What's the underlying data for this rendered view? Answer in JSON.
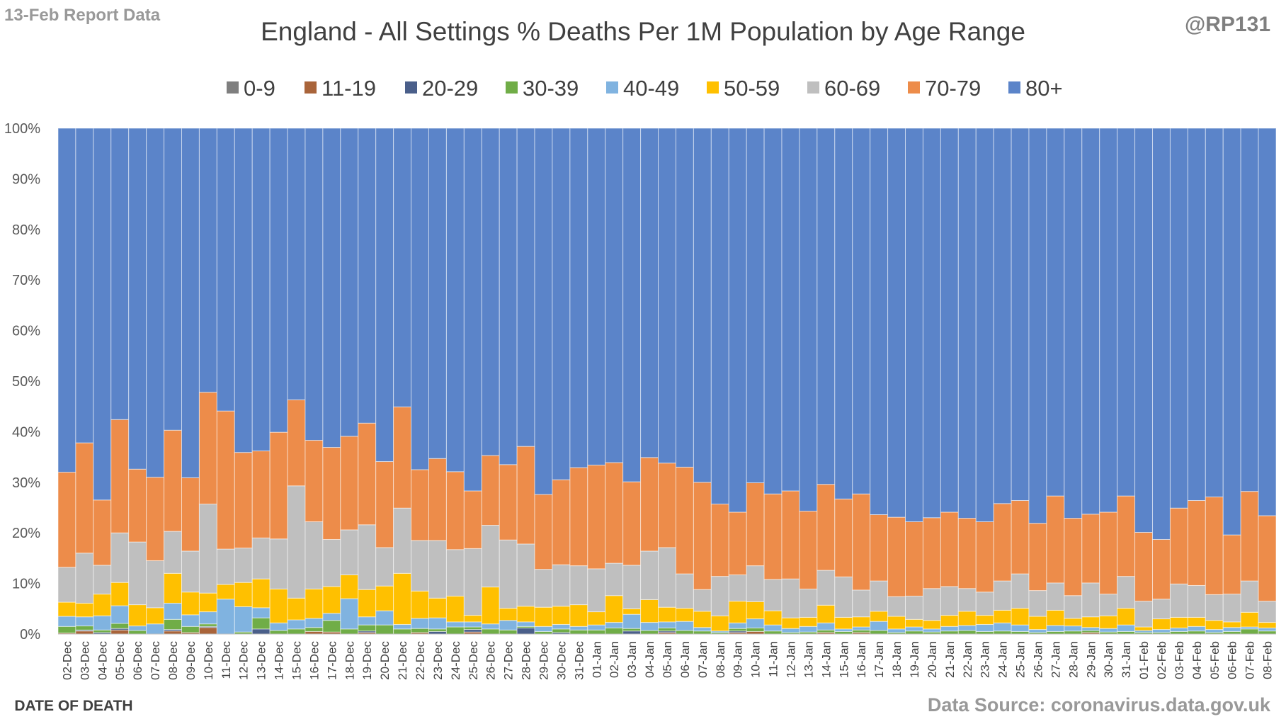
{
  "header": {
    "report_label": "13-Feb Report Data",
    "brand": "@RP131",
    "source": "Data Source: coronavirus.data.gov.uk"
  },
  "chart_data": {
    "type": "bar",
    "stacked": true,
    "normalized": true,
    "title": "England - All Settings % Deaths Per 1M Population by Age Range",
    "xlabel": "DATE OF DEATH",
    "ylabel": "",
    "ylim": [
      0,
      100
    ],
    "y_ticks": [
      "0%",
      "10%",
      "20%",
      "30%",
      "40%",
      "50%",
      "60%",
      "70%",
      "80%",
      "90%",
      "100%"
    ],
    "legend_position": "top",
    "grid": false,
    "categories": [
      "02-Dec",
      "03-Dec",
      "04-Dec",
      "05-Dec",
      "06-Dec",
      "07-Dec",
      "08-Dec",
      "09-Dec",
      "10-Dec",
      "11-Dec",
      "12-Dec",
      "13-Dec",
      "14-Dec",
      "15-Dec",
      "16-Dec",
      "17-Dec",
      "18-Dec",
      "19-Dec",
      "20-Dec",
      "21-Dec",
      "22-Dec",
      "23-Dec",
      "24-Dec",
      "25-Dec",
      "26-Dec",
      "27-Dec",
      "28-Dec",
      "29-Dec",
      "30-Dec",
      "31-Dec",
      "01-Jan",
      "02-Jan",
      "03-Jan",
      "04-Jan",
      "05-Jan",
      "06-Jan",
      "07-Jan",
      "08-Jan",
      "09-Jan",
      "10-Jan",
      "11-Jan",
      "12-Jan",
      "13-Jan",
      "14-Jan",
      "15-Jan",
      "16-Jan",
      "17-Jan",
      "18-Jan",
      "19-Jan",
      "20-Jan",
      "21-Jan",
      "22-Jan",
      "23-Jan",
      "24-Jan",
      "25-Jan",
      "26-Jan",
      "27-Jan",
      "28-Jan",
      "29-Jan",
      "30-Jan",
      "31-Jan",
      "01-Feb",
      "02-Feb",
      "03-Feb",
      "04-Feb",
      "05-Feb",
      "06-Feb",
      "07-Feb",
      "08-Feb"
    ],
    "series": [
      {
        "name": "0-9",
        "color": "#7f7f7f",
        "values": [
          0,
          0,
          0,
          0,
          0,
          0,
          0,
          0,
          0,
          0,
          0,
          0,
          0,
          0,
          0,
          0,
          0,
          0,
          0,
          0,
          0,
          0,
          0,
          0,
          0,
          0,
          0,
          0,
          0,
          0,
          0,
          0,
          0,
          0,
          0,
          0,
          0,
          0,
          0,
          0,
          0,
          0,
          0,
          0,
          0,
          0,
          0,
          0,
          0,
          0,
          0,
          0,
          0,
          0,
          0,
          0,
          0,
          0,
          0,
          0,
          0,
          0,
          0,
          0,
          0,
          0,
          0,
          0,
          0
        ]
      },
      {
        "name": "11-19",
        "color": "#a9643a",
        "values": [
          0.2,
          0.6,
          0,
          0.8,
          0,
          0,
          0.6,
          0.3,
          1.3,
          0,
          0,
          0,
          0,
          0,
          0.5,
          0.4,
          0,
          0.3,
          0,
          0,
          0.3,
          0,
          0,
          0.4,
          0,
          0,
          0,
          0,
          0,
          0,
          0,
          0,
          0,
          0,
          0.3,
          0,
          0,
          0,
          0.3,
          0.5,
          0,
          0,
          0,
          0.3,
          0,
          0.3,
          0,
          0,
          0,
          0,
          0,
          0,
          0,
          0,
          0,
          0,
          0,
          0,
          0.3,
          0,
          0,
          0,
          0,
          0,
          0,
          0,
          0,
          0,
          0
        ]
      },
      {
        "name": "20-29",
        "color": "#4a5f8a",
        "values": [
          0,
          0.2,
          0.3,
          0.3,
          0,
          0,
          0.3,
          0,
          0.2,
          0,
          0,
          1.0,
          0,
          0,
          0,
          0,
          0,
          0.3,
          0,
          0,
          0,
          0.5,
          0,
          0.5,
          0,
          0,
          1.2,
          0,
          0.3,
          0,
          0,
          0,
          0.6,
          0,
          0.3,
          0,
          0,
          0,
          0.3,
          0,
          0,
          0,
          0,
          0,
          0,
          0,
          0,
          0,
          0,
          0,
          0,
          0,
          0,
          0,
          0,
          0,
          0,
          0,
          0,
          0,
          0,
          0,
          0,
          0,
          0,
          0,
          0,
          0,
          0
        ]
      },
      {
        "name": "30-39",
        "color": "#70ad47",
        "values": [
          1.3,
          0.8,
          0.5,
          1.0,
          0.7,
          0,
          2.0,
          1.2,
          0.5,
          0,
          0.4,
          2.2,
          0.7,
          1.0,
          0.8,
          2.3,
          1.0,
          1.2,
          1.8,
          1.0,
          0.8,
          0.5,
          1.4,
          0.5,
          1.0,
          0.8,
          0.3,
          0.5,
          0.7,
          0.8,
          0.8,
          1.2,
          0.5,
          0.7,
          0.6,
          0.7,
          0.6,
          0.3,
          0.5,
          0.7,
          0.6,
          0.3,
          0.4,
          0.5,
          0.5,
          0.5,
          0.7,
          0.3,
          0.6,
          0.4,
          0.6,
          0.7,
          0.5,
          0.6,
          0.5,
          0.3,
          0.5,
          0.6,
          0.4,
          0.4,
          0.5,
          0.3,
          0.3,
          0.5,
          0.6,
          0.3,
          0.5,
          1.0,
          0.6
        ]
      },
      {
        "name": "40-49",
        "color": "#80b3e0",
        "values": [
          2.0,
          1.8,
          2.8,
          3.5,
          0.9,
          2.0,
          3.2,
          2.3,
          2.4,
          6.9,
          5.0,
          2.0,
          1.5,
          1.8,
          1.8,
          1.4,
          6.0,
          1.6,
          2.8,
          0.9,
          2.0,
          2.2,
          1.0,
          1.0,
          1.0,
          1.9,
          0.9,
          1.0,
          0.9,
          0.7,
          1.0,
          1.1,
          2.8,
          1.6,
          1.2,
          1.8,
          0.7,
          0.3,
          1.1,
          1.8,
          1.2,
          0.8,
          1.1,
          1.4,
          0.5,
          0.6,
          1.8,
          0.7,
          0.8,
          0.6,
          0.9,
          1.0,
          1.4,
          1.6,
          1.3,
          0.6,
          1.2,
          1.0,
          0.6,
          0.7,
          1.3,
          0.4,
          0.6,
          0.7,
          0.9,
          0.6,
          0.8,
          0.4,
          0.6
        ]
      },
      {
        "name": "50-59",
        "color": "#ffc000",
        "values": [
          2.8,
          2.7,
          4.3,
          4.6,
          4.2,
          3.2,
          5.9,
          4.5,
          3.7,
          2.9,
          4.8,
          5.7,
          6.7,
          4.3,
          5.8,
          5.3,
          4.7,
          5.4,
          4.9,
          10.1,
          5.4,
          3.9,
          5.1,
          1.3,
          7.3,
          2.4,
          3.1,
          3.8,
          3.6,
          4.3,
          2.6,
          5.3,
          1.1,
          4.5,
          2.9,
          2.6,
          3.2,
          3.0,
          4.3,
          3.4,
          2.8,
          2.1,
          1.8,
          3.5,
          2.3,
          2.0,
          2.0,
          2.5,
          1.5,
          1.7,
          2.2,
          2.8,
          1.8,
          2.5,
          3.3,
          2.6,
          3.0,
          1.5,
          2.1,
          2.5,
          3.3,
          0.7,
          2.1,
          2.1,
          1.8,
          1.8,
          1.1,
          2.9,
          1.1
        ]
      },
      {
        "name": "60-69",
        "color": "#bfbfbf",
        "values": [
          6.9,
          9.9,
          5.7,
          9.8,
          12.4,
          9.3,
          8.3,
          8.1,
          17.6,
          7.0,
          6.8,
          8.1,
          9.9,
          22.2,
          13.3,
          9.3,
          8.9,
          12.8,
          7.6,
          12.9,
          10.0,
          11.4,
          9.2,
          13.2,
          12.2,
          13.5,
          12.3,
          7.5,
          8.2,
          7.7,
          8.5,
          6.4,
          8.6,
          9.6,
          11.8,
          6.8,
          4.3,
          7.8,
          5.2,
          7.1,
          6.2,
          7.7,
          5.6,
          6.9,
          8.0,
          5.3,
          6.0,
          3.9,
          4.6,
          6.3,
          5.7,
          4.5,
          4.6,
          5.8,
          6.8,
          5.1,
          5.4,
          4.5,
          6.7,
          4.3,
          6.3,
          5.1,
          3.9,
          6.6,
          6.3,
          5.1,
          5.5,
          6.2,
          4.2
        ]
      },
      {
        "name": "70-79",
        "color": "#ed8c4a",
        "values": [
          18.8,
          21.8,
          12.9,
          22.4,
          14.4,
          16.5,
          20.0,
          14.5,
          22.1,
          27.3,
          18.9,
          17.2,
          21.1,
          17.0,
          16.1,
          18.2,
          18.5,
          20.1,
          17.0,
          20.0,
          14.0,
          16.2,
          15.4,
          11.4,
          13.8,
          14.9,
          19.3,
          14.8,
          16.8,
          19.4,
          20.5,
          19.9,
          16.5,
          18.5,
          16.7,
          21.1,
          21.2,
          14.3,
          12.4,
          16.4,
          16.9,
          17.4,
          15.4,
          17.0,
          15.4,
          19.0,
          13.1,
          15.7,
          14.7,
          14.0,
          14.7,
          13.9,
          13.9,
          15.3,
          14.5,
          13.3,
          17.2,
          15.3,
          13.6,
          16.2,
          15.9,
          13.6,
          11.8,
          15.0,
          16.8,
          19.3,
          11.7,
          17.7,
          16.9
        ]
      },
      {
        "name": "80+",
        "color": "#5b84c9",
        "values": [
          68.0,
          62.2,
          73.5,
          57.6,
          67.4,
          69.0,
          59.7,
          69.1,
          52.2,
          55.9,
          64.1,
          63.8,
          60.1,
          53.7,
          61.7,
          63.1,
          60.9,
          58.3,
          65.9,
          55.1,
          67.5,
          65.3,
          67.9,
          71.7,
          64.7,
          66.5,
          62.9,
          72.4,
          69.5,
          67.1,
          66.6,
          66.1,
          69.9,
          65.1,
          66.2,
          67.0,
          70.0,
          74.3,
          75.9,
          70.1,
          72.3,
          71.7,
          75.7,
          70.4,
          73.3,
          72.3,
          76.4,
          76.9,
          77.8,
          77.0,
          75.9,
          77.1,
          77.8,
          74.2,
          73.6,
          78.1,
          72.7,
          77.1,
          76.3,
          75.9,
          72.7,
          79.9,
          81.3,
          75.1,
          73.6,
          72.9,
          80.4,
          71.8,
          76.6
        ]
      }
    ]
  }
}
